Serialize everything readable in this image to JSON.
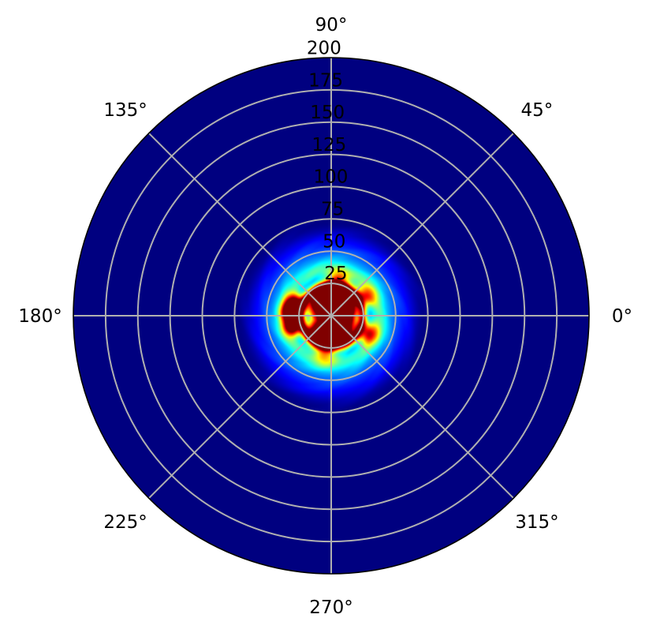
{
  "chart_data": {
    "type": "heatmap",
    "projection": "polar",
    "title": "",
    "colormap": "jet",
    "background_color": "#00008b",
    "radial_axis": {
      "range": [
        0,
        200
      ],
      "ticks": [
        25,
        50,
        75,
        100,
        125,
        150,
        175,
        200
      ],
      "tick_labels": [
        "25",
        "50",
        "75",
        "100",
        "125",
        "150",
        "175",
        "200"
      ]
    },
    "angular_axis": {
      "ticks_deg": [
        0,
        45,
        90,
        135,
        180,
        225,
        270,
        315
      ],
      "tick_labels": [
        "0°",
        "45°",
        "90°",
        "135°",
        "180°",
        "225°",
        "270°",
        "315°"
      ]
    },
    "grid": true,
    "intensity_blobs": [
      {
        "theta_deg": 0,
        "r": 0,
        "level": 1.0,
        "spread": 12
      },
      {
        "theta_deg": 100,
        "r": 15,
        "level": 1.0,
        "spread": 7
      },
      {
        "theta_deg": 60,
        "r": 17,
        "level": 0.95,
        "spread": 7
      },
      {
        "theta_deg": 130,
        "r": 14,
        "level": 0.9,
        "spread": 6
      },
      {
        "theta_deg": 300,
        "r": 12,
        "level": 1.0,
        "spread": 8
      },
      {
        "theta_deg": 230,
        "r": 18,
        "level": 0.9,
        "spread": 6
      },
      {
        "theta_deg": 20,
        "r": 10,
        "level": 0.85,
        "spread": 6
      },
      {
        "theta_deg": 175,
        "r": 32,
        "level": 1.0,
        "spread": 5
      },
      {
        "theta_deg": 195,
        "r": 31,
        "level": 0.95,
        "spread": 5
      },
      {
        "theta_deg": 160,
        "r": 30,
        "level": 0.85,
        "spread": 5
      },
      {
        "theta_deg": 30,
        "r": 30,
        "level": 0.55,
        "spread": 6
      },
      {
        "theta_deg": 335,
        "r": 31,
        "level": 0.6,
        "spread": 6
      },
      {
        "theta_deg": 80,
        "r": 28,
        "level": 0.45,
        "spread": 6
      },
      {
        "theta_deg": 260,
        "r": 28,
        "level": 0.5,
        "spread": 6
      }
    ],
    "rings": [
      {
        "r": 24,
        "level": 0.6,
        "width": 2.5
      },
      {
        "r": 36,
        "level": 0.35,
        "width": 5
      },
      {
        "r": 46,
        "level": 0.2,
        "width": 6
      },
      {
        "r": 58,
        "level": 0.1,
        "width": 6
      }
    ]
  }
}
